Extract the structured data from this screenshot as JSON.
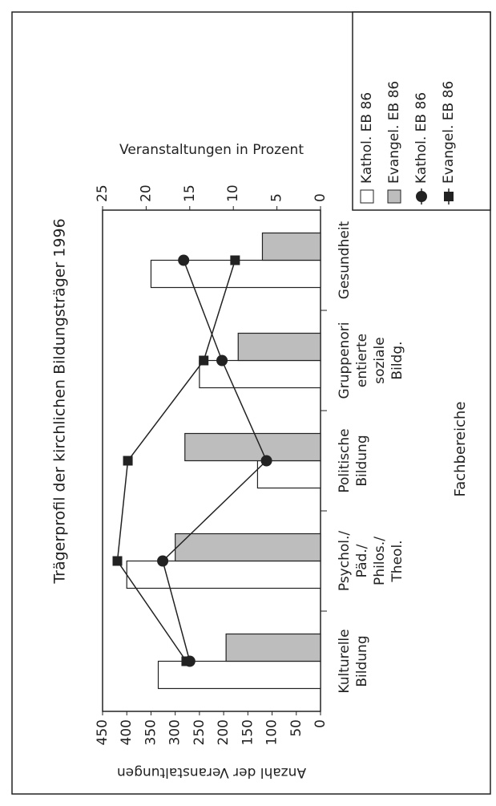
{
  "chart_data": {
    "type": "bar",
    "title": "Trägerprofil der kirchlichen Bildungsträger 1996",
    "categories": [
      [
        "Kulturelle",
        "Bildung"
      ],
      [
        "Psychol./",
        "Päd./",
        "Philos./",
        "Theol."
      ],
      [
        "Politische",
        "Bildung"
      ],
      [
        "Gruppenori",
        "entierte",
        "soziale",
        "Bildg."
      ],
      [
        "Gesundheit"
      ]
    ],
    "x_label": "Fachbereiche",
    "y_label": "Anzahl der Veranstaltungen",
    "y2_label": "Veranstaltungen in Prozent",
    "ylim": [
      0,
      450
    ],
    "yticks": [
      0,
      50,
      100,
      150,
      200,
      250,
      300,
      350,
      400,
      450
    ],
    "y2lim": [
      0,
      25
    ],
    "y2ticks": [
      0,
      5,
      10,
      15,
      20,
      25
    ],
    "series": [
      {
        "name": "Kathol. EB 86",
        "type": "bar",
        "color": "#ffffff",
        "values": [
          335,
          400,
          130,
          250,
          350
        ]
      },
      {
        "name": "Evangel. EB 86",
        "type": "bar",
        "color": "#bdbdbd",
        "values": [
          195,
          300,
          280,
          170,
          120
        ]
      },
      {
        "name": "Kathol. EB 86",
        "type": "line",
        "marker": "circle",
        "axis": "y2",
        "color": "#222222",
        "values": [
          15.0,
          18.1,
          6.2,
          11.3,
          15.7
        ]
      },
      {
        "name": "Evangel. EB 86",
        "type": "line",
        "marker": "square",
        "axis": "y2",
        "color": "#222222",
        "values": [
          15.4,
          23.3,
          22.1,
          13.4,
          9.8
        ]
      }
    ]
  }
}
